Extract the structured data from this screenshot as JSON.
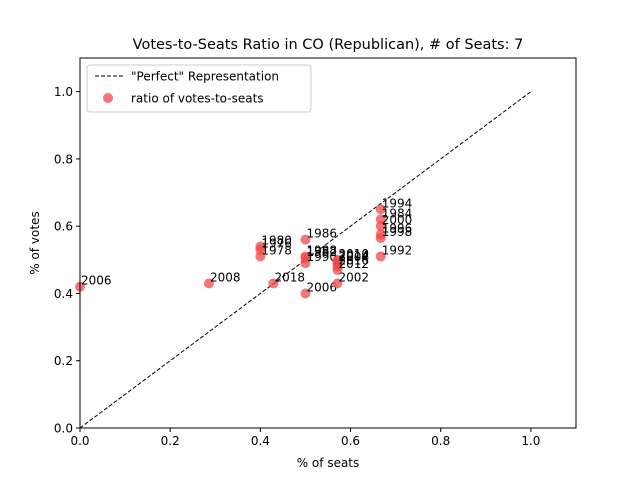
{
  "chart_data": {
    "type": "scatter",
    "title": "Votes-to-Seats Ratio in CO (Republican), # of Seats: 7",
    "xlabel": "% of seats",
    "ylabel": "% of votes",
    "xlim": [
      0,
      1.1
    ],
    "ylim": [
      0,
      1.1
    ],
    "xticks": [
      "0.0",
      "0.2",
      "0.4",
      "0.6",
      "0.8",
      "1.0"
    ],
    "yticks": [
      "0.0",
      "0.2",
      "0.4",
      "0.6",
      "0.8",
      "1.0"
    ],
    "grid": false,
    "legend_position": "top-left",
    "reference_line": {
      "name": "\"Perfect\" Representation",
      "points": [
        [
          0,
          0
        ],
        [
          1,
          1
        ]
      ],
      "color": "#000000",
      "style": "dashed"
    },
    "series": [
      {
        "name": "ratio of votes-to-seats",
        "color": "#f0484b",
        "points": [
          {
            "year": "2006",
            "x": 0.0,
            "y": 0.42
          },
          {
            "year": "2008",
            "x": 0.286,
            "y": 0.43
          },
          {
            "year": "2018",
            "x": 0.429,
            "y": 0.43
          },
          {
            "year": "2006",
            "x": 0.5,
            "y": 0.4
          },
          {
            "year": "2002",
            "x": 0.571,
            "y": 0.43
          },
          {
            "year": "1980",
            "x": 0.4,
            "y": 0.54
          },
          {
            "year": "1976",
            "x": 0.4,
            "y": 0.53
          },
          {
            "year": "1978",
            "x": 0.4,
            "y": 0.51
          },
          {
            "year": "1986",
            "x": 0.5,
            "y": 0.56
          },
          {
            "year": "1988",
            "x": 0.5,
            "y": 0.51
          },
          {
            "year": "1982",
            "x": 0.5,
            "y": 0.505
          },
          {
            "year": "1990",
            "x": 0.5,
            "y": 0.49
          },
          {
            "year": "2010",
            "x": 0.571,
            "y": 0.5
          },
          {
            "year": "2014",
            "x": 0.571,
            "y": 0.495
          },
          {
            "year": "2004",
            "x": 0.571,
            "y": 0.49
          },
          {
            "year": "2016",
            "x": 0.571,
            "y": 0.48
          },
          {
            "year": "2012",
            "x": 0.571,
            "y": 0.47
          },
          {
            "year": "1994",
            "x": 0.667,
            "y": 0.65
          },
          {
            "year": "1984",
            "x": 0.667,
            "y": 0.62
          },
          {
            "year": "2000",
            "x": 0.667,
            "y": 0.6
          },
          {
            "year": "1996",
            "x": 0.667,
            "y": 0.575
          },
          {
            "year": "1998",
            "x": 0.667,
            "y": 0.565
          },
          {
            "year": "1992",
            "x": 0.667,
            "y": 0.51
          }
        ]
      }
    ]
  }
}
